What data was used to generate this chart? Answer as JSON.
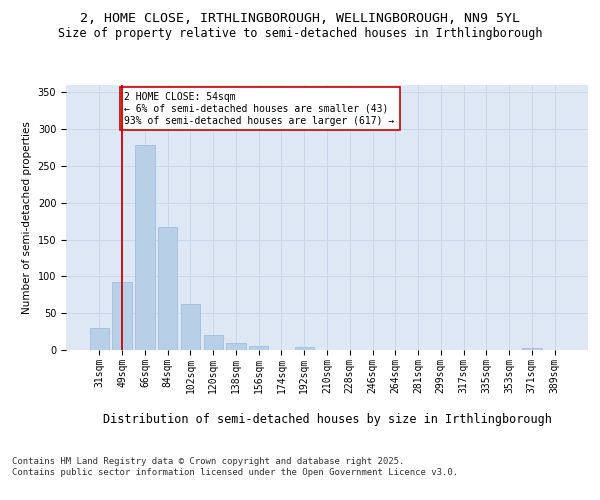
{
  "title": "2, HOME CLOSE, IRTHLINGBOROUGH, WELLINGBOROUGH, NN9 5YL",
  "subtitle": "Size of property relative to semi-detached houses in Irthlingborough",
  "xlabel": "Distribution of semi-detached houses by size in Irthlingborough",
  "ylabel": "Number of semi-detached properties",
  "categories": [
    "31sqm",
    "49sqm",
    "66sqm",
    "84sqm",
    "102sqm",
    "120sqm",
    "138sqm",
    "156sqm",
    "174sqm",
    "192sqm",
    "210sqm",
    "228sqm",
    "246sqm",
    "264sqm",
    "281sqm",
    "299sqm",
    "317sqm",
    "335sqm",
    "353sqm",
    "371sqm",
    "389sqm"
  ],
  "values": [
    30,
    93,
    278,
    167,
    62,
    21,
    10,
    5,
    0,
    4,
    0,
    0,
    0,
    0,
    0,
    0,
    0,
    0,
    0,
    3,
    0
  ],
  "bar_color": "#b8cfe8",
  "bar_edge_color": "#9ab8dc",
  "grid_color": "#c8d8ec",
  "background_color": "#dde8f4",
  "vline_color": "#cc0000",
  "annotation_text": "2 HOME CLOSE: 54sqm\n← 6% of semi-detached houses are smaller (43)\n93% of semi-detached houses are larger (617) →",
  "annotation_box_color": "#ffffff",
  "annotation_box_edge": "#cc0000",
  "ylim": [
    0,
    360
  ],
  "yticks": [
    0,
    50,
    100,
    150,
    200,
    250,
    300,
    350
  ],
  "footer": "Contains HM Land Registry data © Crown copyright and database right 2025.\nContains public sector information licensed under the Open Government Licence v3.0.",
  "title_fontsize": 9.5,
  "subtitle_fontsize": 8.5,
  "xlabel_fontsize": 8.5,
  "ylabel_fontsize": 7.5,
  "tick_fontsize": 7,
  "annotation_fontsize": 7,
  "footer_fontsize": 6.5
}
